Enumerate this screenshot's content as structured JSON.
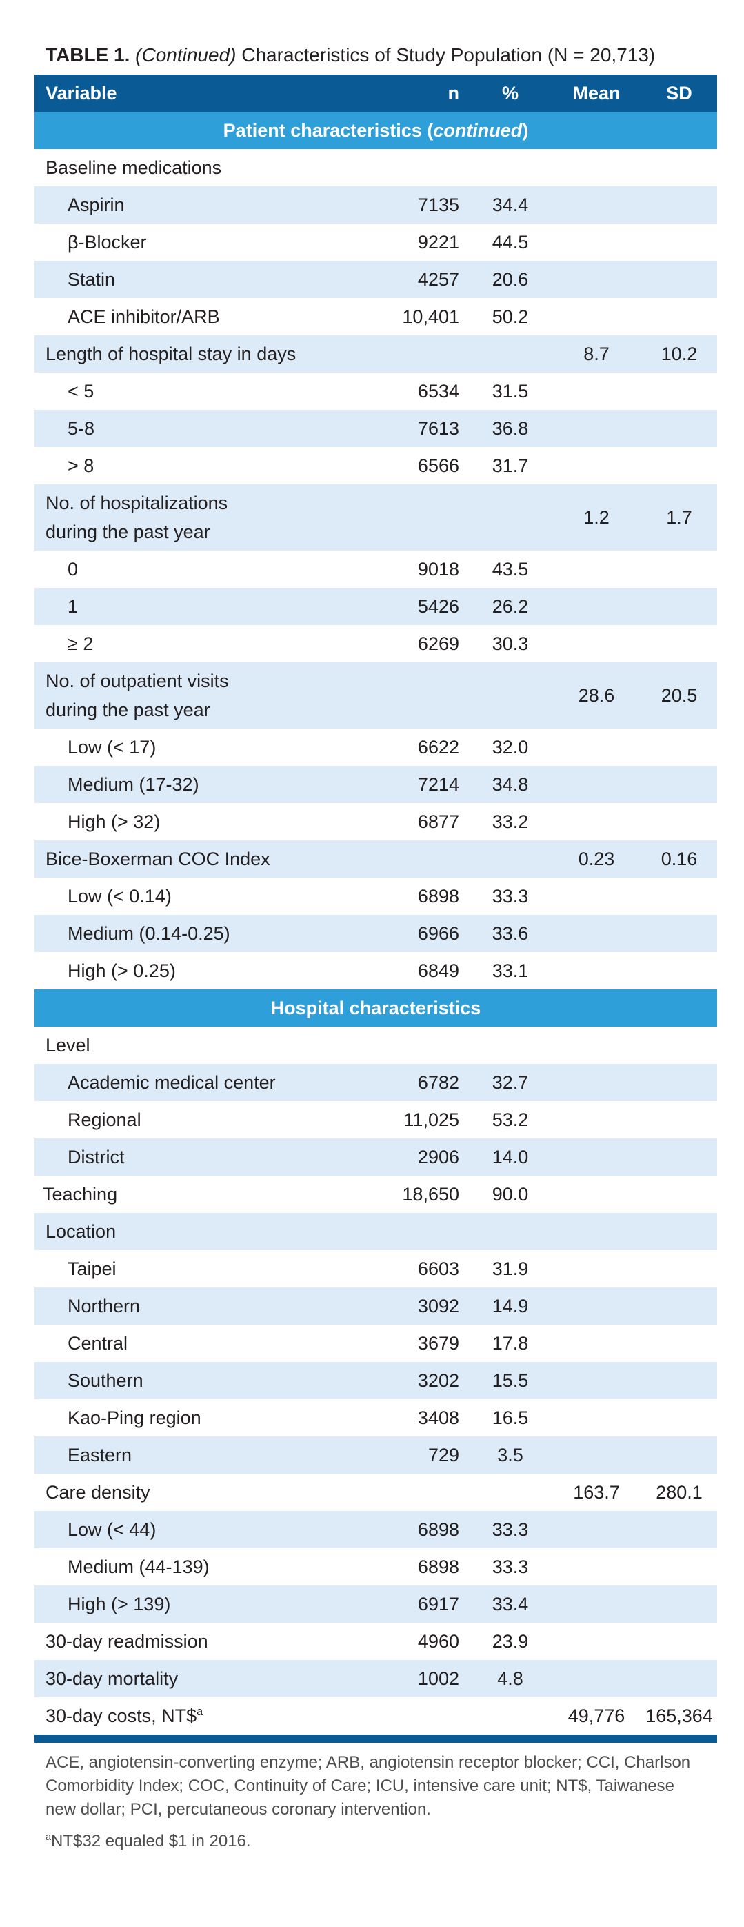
{
  "caption": {
    "label": "TABLE 1.",
    "italic": "(Continued)",
    "text": " Characteristics of Study Population (N = 20,713)"
  },
  "columns": {
    "variable": "Variable",
    "n": "n",
    "pct": "%",
    "mean": "Mean",
    "sd": "SD"
  },
  "sections": {
    "patient_prefix": "Patient characteristics (",
    "patient_italic": "continued",
    "patient_suffix": ")",
    "hospital": "Hospital characteristics"
  },
  "patient_rows": [
    {
      "label": "Baseline medications",
      "n": "",
      "pct": "",
      "mean": "",
      "sd": ""
    },
    {
      "label": "Aspirin",
      "n": "7135",
      "pct": "34.4",
      "mean": "",
      "sd": ""
    },
    {
      "label": "β-Blocker",
      "n": "9221",
      "pct": "44.5",
      "mean": "",
      "sd": ""
    },
    {
      "label": "Statin",
      "n": "4257",
      "pct": "20.6",
      "mean": "",
      "sd": ""
    },
    {
      "label": "ACE inhibitor/ARB",
      "n": "10,401",
      "pct": "50.2",
      "mean": "",
      "sd": ""
    },
    {
      "label": "Length of hospital stay in days",
      "n": "",
      "pct": "",
      "mean": "8.7",
      "sd": "10.2"
    },
    {
      "label": "< 5",
      "n": "6534",
      "pct": "31.5",
      "mean": "",
      "sd": ""
    },
    {
      "label": "5-8",
      "n": "7613",
      "pct": "36.8",
      "mean": "",
      "sd": ""
    },
    {
      "label": "> 8",
      "n": "6566",
      "pct": "31.7",
      "mean": "",
      "sd": ""
    },
    {
      "label": "No. of hospitalizations",
      "label2": "during the past year",
      "n": "",
      "pct": "",
      "mean": "1.2",
      "sd": "1.7"
    },
    {
      "label": "0",
      "n": "9018",
      "pct": "43.5",
      "mean": "",
      "sd": ""
    },
    {
      "label": "1",
      "n": "5426",
      "pct": "26.2",
      "mean": "",
      "sd": ""
    },
    {
      "label": "≥ 2",
      "n": "6269",
      "pct": "30.3",
      "mean": "",
      "sd": ""
    },
    {
      "label": "No. of outpatient visits",
      "label2": "during the past year",
      "n": "",
      "pct": "",
      "mean": "28.6",
      "sd": "20.5"
    },
    {
      "label": "Low (< 17)",
      "n": "6622",
      "pct": "32.0",
      "mean": "",
      "sd": ""
    },
    {
      "label": "Medium (17-32)",
      "n": "7214",
      "pct": "34.8",
      "mean": "",
      "sd": ""
    },
    {
      "label": "High (> 32)",
      "n": "6877",
      "pct": "33.2",
      "mean": "",
      "sd": ""
    },
    {
      "label": "Bice-Boxerman COC Index",
      "n": "",
      "pct": "",
      "mean": "0.23",
      "sd": "0.16"
    },
    {
      "label": "Low (< 0.14)",
      "n": "6898",
      "pct": "33.3",
      "mean": "",
      "sd": ""
    },
    {
      "label": "Medium (0.14-0.25)",
      "n": "6966",
      "pct": "33.6",
      "mean": "",
      "sd": ""
    },
    {
      "label": "High (> 0.25)",
      "n": "6849",
      "pct": "33.1",
      "mean": "",
      "sd": ""
    }
  ],
  "hospital_rows": [
    {
      "label": "Level",
      "n": "",
      "pct": "",
      "mean": "",
      "sd": ""
    },
    {
      "label": "Academic medical center",
      "n": "6782",
      "pct": "32.7",
      "mean": "",
      "sd": ""
    },
    {
      "label": "Regional",
      "n": "11,025",
      "pct": "53.2",
      "mean": "",
      "sd": ""
    },
    {
      "label": "District",
      "n": "2906",
      "pct": "14.0",
      "mean": "",
      "sd": ""
    },
    {
      "label": "Teaching",
      "n": "18,650",
      "pct": "90.0",
      "mean": "",
      "sd": ""
    },
    {
      "label": "Location",
      "n": "",
      "pct": "",
      "mean": "",
      "sd": ""
    },
    {
      "label": "Taipei",
      "n": "6603",
      "pct": "31.9",
      "mean": "",
      "sd": ""
    },
    {
      "label": "Northern",
      "n": "3092",
      "pct": "14.9",
      "mean": "",
      "sd": ""
    },
    {
      "label": "Central",
      "n": "3679",
      "pct": "17.8",
      "mean": "",
      "sd": ""
    },
    {
      "label": "Southern",
      "n": "3202",
      "pct": "15.5",
      "mean": "",
      "sd": ""
    },
    {
      "label": "Kao-Ping region",
      "n": "3408",
      "pct": "16.5",
      "mean": "",
      "sd": ""
    },
    {
      "label": "Eastern",
      "n": "729",
      "pct": "3.5",
      "mean": "",
      "sd": ""
    },
    {
      "label": "Care density",
      "n": "",
      "pct": "",
      "mean": "163.7",
      "sd": "280.1"
    },
    {
      "label": "Low (< 44)",
      "n": "6898",
      "pct": "33.3",
      "mean": "",
      "sd": ""
    },
    {
      "label": "Medium (44-139)",
      "n": "6898",
      "pct": "33.3",
      "mean": "",
      "sd": ""
    },
    {
      "label": "High (> 139)",
      "n": "6917",
      "pct": "33.4",
      "mean": "",
      "sd": ""
    },
    {
      "label": "30-day readmission",
      "n": "4960",
      "pct": "23.9",
      "mean": "",
      "sd": ""
    },
    {
      "label": "30-day mortality",
      "n": "1002",
      "pct": "4.8",
      "mean": "",
      "sd": ""
    },
    {
      "label": "30-day costs, NT$",
      "sup": "a",
      "n": "",
      "pct": "",
      "mean": "49,776",
      "sd": "165,364"
    }
  ],
  "footnotes": {
    "abbrev": "ACE, angiotensin-converting enzyme; ARB, angiotensin receptor blocker; CCI, Charlson Comorbidity Index; COC, Continuity of Care; ICU, intensive care unit; NT$, Taiwanese new dollar; PCI, percutaneous coronary intervention.",
    "a_marker": "a",
    "a_text": "NT$32 equaled $1 in 2016."
  }
}
